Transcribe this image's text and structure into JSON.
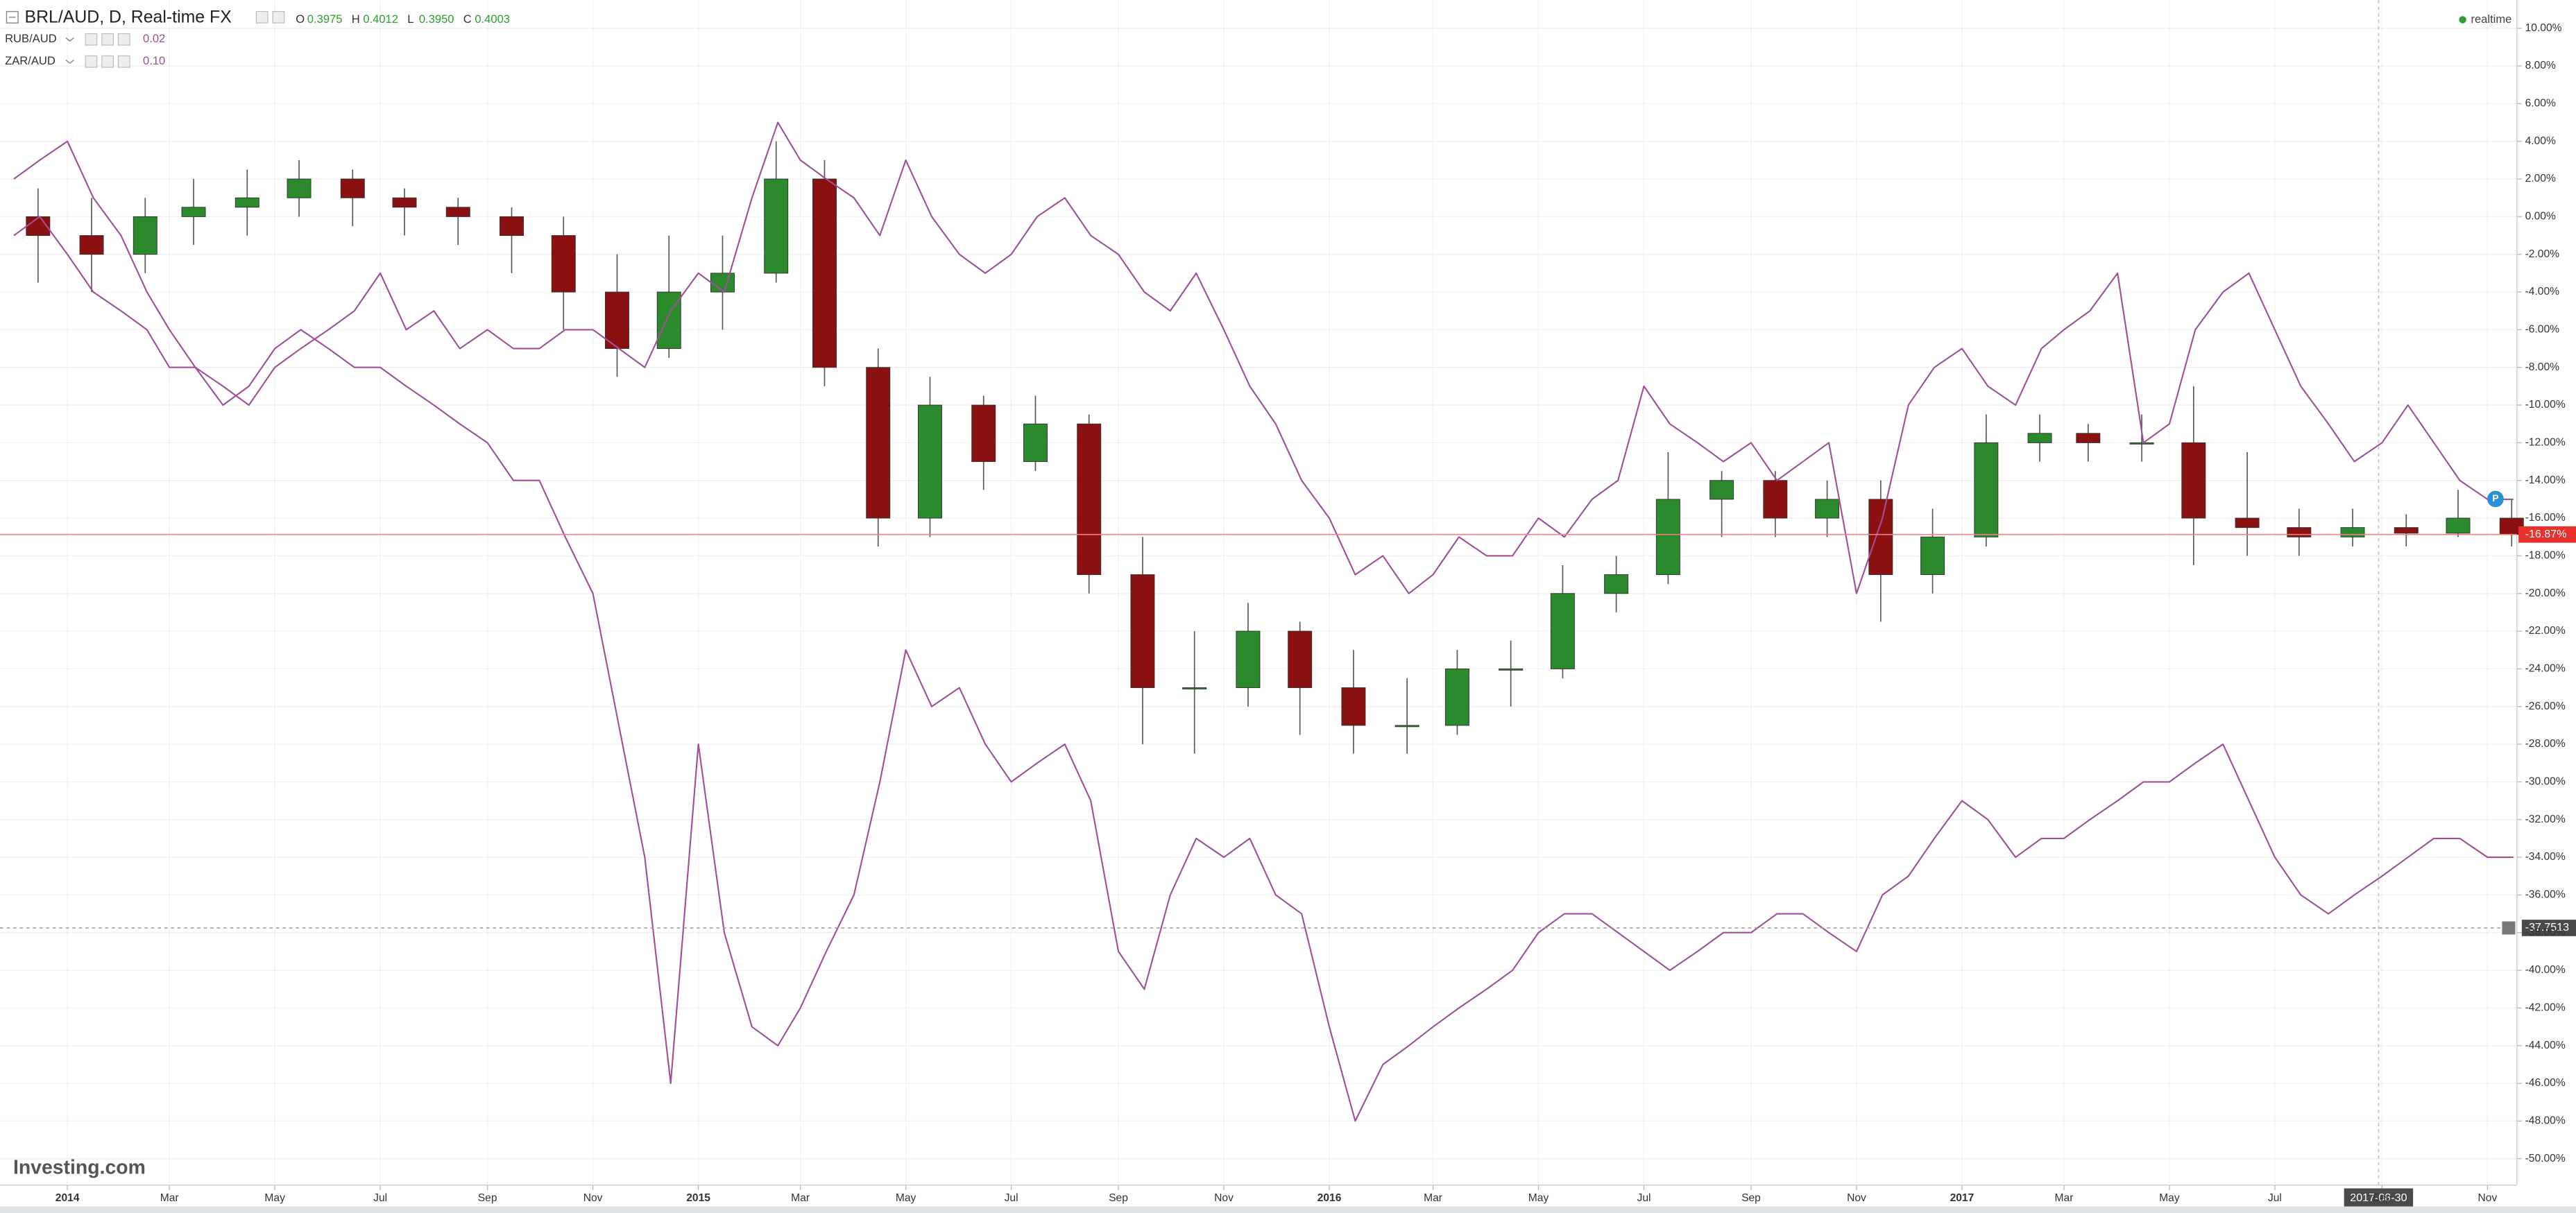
{
  "chart_data": {
    "type": "candlestick",
    "title": "BRL/AUD, D, Real-time FX",
    "ohlc": [
      {
        "label": "O",
        "value": "0.3975"
      },
      {
        "label": "H",
        "value": "0.4012"
      },
      {
        "label": "L",
        "value": "0.3950"
      },
      {
        "label": "C",
        "value": "0.4003"
      }
    ],
    "status": "realtime",
    "logo": "Investing.com",
    "grid": true,
    "ylim": [
      -51.4,
      11.5
    ],
    "yticks": [
      {
        "value": 10,
        "label": "10.00%"
      },
      {
        "value": 8,
        "label": "8.00%"
      },
      {
        "value": 6,
        "label": "6.00%"
      },
      {
        "value": 4,
        "label": "4.00%"
      },
      {
        "value": 2,
        "label": "2.00%"
      },
      {
        "value": 0,
        "label": "0.00%"
      },
      {
        "value": -2,
        "label": "-2.00%"
      },
      {
        "value": -4,
        "label": "-4.00%"
      },
      {
        "value": -6,
        "label": "-6.00%"
      },
      {
        "value": -8,
        "label": "-8.00%"
      },
      {
        "value": -10,
        "label": "-10.00%"
      },
      {
        "value": -12,
        "label": "-12.00%"
      },
      {
        "value": -14,
        "label": "-14.00%"
      },
      {
        "value": -16,
        "label": "-16.00%"
      },
      {
        "value": -18,
        "label": "-18.00%"
      },
      {
        "value": -20,
        "label": "-20.00%"
      },
      {
        "value": -22,
        "label": "-22.00%"
      },
      {
        "value": -24,
        "label": "-24.00%"
      },
      {
        "value": -26,
        "label": "-26.00%"
      },
      {
        "value": -28,
        "label": "-28.00%"
      },
      {
        "value": -30,
        "label": "-30.00%"
      },
      {
        "value": -32,
        "label": "-32.00%"
      },
      {
        "value": -34,
        "label": "-34.00%"
      },
      {
        "value": -36,
        "label": "-36.00%"
      },
      {
        "value": -38,
        "label": "-38.00%"
      },
      {
        "value": -40,
        "label": "-40.00%"
      },
      {
        "value": -42,
        "label": "-42.00%"
      },
      {
        "value": -44,
        "label": "-44.00%"
      },
      {
        "value": -46,
        "label": "-46.00%"
      },
      {
        "value": -48,
        "label": "-48.00%"
      },
      {
        "value": -50,
        "label": "-50.00%"
      }
    ],
    "xlim": [
      "2013-11-23",
      "2017-11-18"
    ],
    "xticks": [
      {
        "value": "2014-01-01",
        "label": "2014"
      },
      {
        "value": "2014-03-01",
        "label": "Mar"
      },
      {
        "value": "2014-05-01",
        "label": "May"
      },
      {
        "value": "2014-07-01",
        "label": "Jul"
      },
      {
        "value": "2014-09-01",
        "label": "Sep"
      },
      {
        "value": "2014-11-01",
        "label": "Nov"
      },
      {
        "value": "2015-01-01",
        "label": "2015"
      },
      {
        "value": "2015-03-01",
        "label": "Mar"
      },
      {
        "value": "2015-05-01",
        "label": "May"
      },
      {
        "value": "2015-07-01",
        "label": "Jul"
      },
      {
        "value": "2015-09-01",
        "label": "Sep"
      },
      {
        "value": "2015-11-01",
        "label": "Nov"
      },
      {
        "value": "2016-01-01",
        "label": "2016"
      },
      {
        "value": "2016-03-01",
        "label": "Mar"
      },
      {
        "value": "2016-05-01",
        "label": "May"
      },
      {
        "value": "2016-07-01",
        "label": "Jul"
      },
      {
        "value": "2016-09-01",
        "label": "Sep"
      },
      {
        "value": "2016-11-01",
        "label": "Nov"
      },
      {
        "value": "2017-01-01",
        "label": "2017"
      },
      {
        "value": "2017-03-01",
        "label": "Mar"
      },
      {
        "value": "2017-05-01",
        "label": "May"
      },
      {
        "value": "2017-07-01",
        "label": "Jul"
      },
      {
        "value": "2017-09-01",
        "label": "Sep"
      },
      {
        "value": "2017-11-01",
        "label": "Nov"
      }
    ],
    "last_value": {
      "value": -16.87,
      "label": "-16.87%"
    },
    "crosshair": {
      "x": "2017-08-30",
      "y": -37.7513
    },
    "series": [
      {
        "name": "BRL/AUD",
        "type": "candlestick",
        "up_color": "#2b8a2b",
        "down_color": "#8b1010",
        "x": [
          "2013-12-15",
          "2014-01-15",
          "2014-02-15",
          "2014-03-15",
          "2014-04-15",
          "2014-05-15",
          "2014-06-15",
          "2014-07-15",
          "2014-08-15",
          "2014-09-15",
          "2014-10-15",
          "2014-11-15",
          "2014-12-15",
          "2015-01-15",
          "2015-02-15",
          "2015-03-15",
          "2015-04-15",
          "2015-05-15",
          "2015-06-15",
          "2015-07-15",
          "2015-08-15",
          "2015-09-15",
          "2015-10-15",
          "2015-11-15",
          "2015-12-15",
          "2016-01-15",
          "2016-02-15",
          "2016-03-15",
          "2016-04-15",
          "2016-05-15",
          "2016-06-15",
          "2016-07-15",
          "2016-08-15",
          "2016-09-15",
          "2016-10-15",
          "2016-11-15",
          "2016-12-15",
          "2017-01-15",
          "2017-02-15",
          "2017-03-15",
          "2017-04-15",
          "2017-05-15",
          "2017-06-15",
          "2017-07-15",
          "2017-08-15",
          "2017-09-15",
          "2017-10-15",
          "2017-11-15"
        ],
        "open": [
          0,
          -1,
          -2,
          0,
          0.5,
          1,
          2,
          1,
          0.5,
          0,
          -1,
          -4,
          -7,
          -4,
          -3,
          2,
          -8,
          -16,
          -10,
          -13,
          -11,
          -19,
          -25,
          -25,
          -22,
          -25,
          -27,
          -27,
          -24,
          -24,
          -20,
          -19,
          -15,
          -14,
          -16,
          -15,
          -19,
          -17,
          -12,
          -11.5,
          -12,
          -12,
          -16,
          -16.5,
          -17,
          -16.5,
          -16.8,
          -16
        ],
        "high": [
          1.5,
          1,
          1,
          2,
          2.5,
          3,
          2.5,
          1.5,
          1,
          0.5,
          0,
          -2,
          -1,
          -1,
          4,
          3,
          -7,
          -8.5,
          -9.5,
          -9.5,
          -10.5,
          -17,
          -22,
          -20.5,
          -21.5,
          -23,
          -24.5,
          -23,
          -22.5,
          -18.5,
          -18,
          -12.5,
          -13.5,
          -13.5,
          -14,
          -14,
          -15.5,
          -10.5,
          -10.5,
          -11,
          -10.5,
          -9,
          -12.5,
          -15.5,
          -15.5,
          -15.8,
          -14.5,
          -15
        ],
        "low": [
          -3.5,
          -4,
          -3,
          -1.5,
          -1,
          0,
          -0.5,
          -1,
          -1.5,
          -3,
          -6,
          -8.5,
          -7.5,
          -6,
          -3.5,
          -9,
          -17.5,
          -17,
          -14.5,
          -13.5,
          -20,
          -28,
          -28.5,
          -26,
          -27.5,
          -28.5,
          -28.5,
          -27.5,
          -26,
          -24.5,
          -21,
          -19.5,
          -17,
          -17,
          -17,
          -21.5,
          -20,
          -17.5,
          -13,
          -13,
          -13,
          -18.5,
          -18,
          -18,
          -17.5,
          -17.5,
          -17,
          -17.5
        ],
        "close": [
          -1,
          -2,
          0,
          0.5,
          1,
          2,
          1,
          0.5,
          0,
          -1,
          -4,
          -7,
          -4,
          -3,
          2,
          -8,
          -16,
          -10,
          -13,
          -11,
          -19,
          -25,
          -25,
          -22,
          -25,
          -27,
          -27,
          -24,
          -24,
          -20,
          -19,
          -15,
          -14,
          -16,
          -15,
          -19,
          -17,
          -12,
          -11.5,
          -12,
          -12,
          -16,
          -16.5,
          -17,
          -16.5,
          -16.8,
          -16,
          -16.87
        ]
      },
      {
        "name": "RUB/AUD",
        "type": "line",
        "color": "#a14f97",
        "legend_value": "0.02",
        "x": [
          "2013-12-01",
          "2013-12-16",
          "2014-01-01",
          "2014-01-16",
          "2014-02-01",
          "2014-02-16",
          "2014-03-01",
          "2014-03-16",
          "2014-04-01",
          "2014-04-16",
          "2014-05-01",
          "2014-05-16",
          "2014-06-01",
          "2014-06-16",
          "2014-07-01",
          "2014-07-16",
          "2014-08-01",
          "2014-08-16",
          "2014-09-01",
          "2014-09-16",
          "2014-10-01",
          "2014-10-16",
          "2014-11-01",
          "2014-11-16",
          "2014-12-01",
          "2014-12-16",
          "2015-01-01",
          "2015-01-16",
          "2015-02-01",
          "2015-02-16",
          "2015-03-01",
          "2015-03-16",
          "2015-04-01",
          "2015-04-16",
          "2015-05-01",
          "2015-05-16",
          "2015-06-01",
          "2015-06-16",
          "2015-07-01",
          "2015-07-16",
          "2015-08-01",
          "2015-08-16",
          "2015-09-01",
          "2015-09-16",
          "2015-10-01",
          "2015-10-16",
          "2015-11-01",
          "2015-11-16",
          "2015-12-01",
          "2015-12-16",
          "2016-01-01",
          "2016-01-16",
          "2016-02-01",
          "2016-02-16",
          "2016-03-01",
          "2016-03-16",
          "2016-04-01",
          "2016-04-16",
          "2016-05-01",
          "2016-05-16",
          "2016-06-01",
          "2016-06-16",
          "2016-07-01",
          "2016-07-16",
          "2016-08-01",
          "2016-08-16",
          "2016-09-01",
          "2016-09-16",
          "2016-10-01",
          "2016-10-16",
          "2016-11-01",
          "2016-11-16",
          "2016-12-01",
          "2016-12-16",
          "2017-01-01",
          "2017-01-16",
          "2017-02-01",
          "2017-02-16",
          "2017-03-01",
          "2017-03-16",
          "2017-04-01",
          "2017-04-16",
          "2017-05-01",
          "2017-05-16",
          "2017-06-01",
          "2017-06-16",
          "2017-07-01",
          "2017-07-16",
          "2017-08-01",
          "2017-08-16",
          "2017-09-01",
          "2017-09-16",
          "2017-10-01",
          "2017-10-16",
          "2017-11-01",
          "2017-11-16"
        ],
        "values": [
          -1,
          0,
          -2,
          -4,
          -5,
          -6,
          -8,
          -8,
          -10,
          -9,
          -7,
          -6,
          -7,
          -8,
          -8,
          -9,
          -10,
          -11,
          -12,
          -14,
          -14,
          -17,
          -20,
          -27,
          -34,
          -46,
          -28,
          -38,
          -43,
          -44,
          -42,
          -39,
          -36,
          -30,
          -23,
          -26,
          -25,
          -28,
          -30,
          -29,
          -28,
          -31,
          -39,
          -41,
          -36,
          -33,
          -34,
          -33,
          -36,
          -37,
          -43,
          -48,
          -45,
          -44,
          -43,
          -42,
          -41,
          -40,
          -38,
          -37,
          -37,
          -38,
          -39,
          -40,
          -39,
          -38,
          -38,
          -37,
          -37,
          -38,
          -39,
          -36,
          -35,
          -33,
          -31,
          -32,
          -34,
          -33,
          -33,
          -32,
          -31,
          -30,
          -30,
          -29,
          -28,
          -31,
          -34,
          -36,
          -37,
          -36,
          -35,
          -34,
          -33,
          -33,
          -34,
          -34
        ]
      },
      {
        "name": "ZAR/AUD",
        "type": "line",
        "color": "#a14f97",
        "legend_value": "0.10",
        "x": [
          "2013-12-01",
          "2013-12-16",
          "2014-01-01",
          "2014-01-16",
          "2014-02-01",
          "2014-02-16",
          "2014-03-01",
          "2014-03-16",
          "2014-04-01",
          "2014-04-16",
          "2014-05-01",
          "2014-05-16",
          "2014-06-01",
          "2014-06-16",
          "2014-07-01",
          "2014-07-16",
          "2014-08-01",
          "2014-08-16",
          "2014-09-01",
          "2014-09-16",
          "2014-10-01",
          "2014-10-16",
          "2014-11-01",
          "2014-11-16",
          "2014-12-01",
          "2014-12-16",
          "2015-01-01",
          "2015-01-16",
          "2015-02-01",
          "2015-02-16",
          "2015-03-01",
          "2015-03-16",
          "2015-04-01",
          "2015-04-16",
          "2015-05-01",
          "2015-05-16",
          "2015-06-01",
          "2015-06-16",
          "2015-07-01",
          "2015-07-16",
          "2015-08-01",
          "2015-08-16",
          "2015-09-01",
          "2015-09-16",
          "2015-10-01",
          "2015-10-16",
          "2015-11-01",
          "2015-11-16",
          "2015-12-01",
          "2015-12-16",
          "2016-01-01",
          "2016-01-16",
          "2016-02-01",
          "2016-02-16",
          "2016-03-01",
          "2016-03-16",
          "2016-04-01",
          "2016-04-16",
          "2016-05-01",
          "2016-05-16",
          "2016-06-01",
          "2016-06-16",
          "2016-07-01",
          "2016-07-16",
          "2016-08-01",
          "2016-08-16",
          "2016-09-01",
          "2016-09-16",
          "2016-10-01",
          "2016-10-16",
          "2016-11-01",
          "2016-11-16",
          "2016-12-01",
          "2016-12-16",
          "2017-01-01",
          "2017-01-16",
          "2017-02-01",
          "2017-02-16",
          "2017-03-01",
          "2017-03-16",
          "2017-04-01",
          "2017-04-16",
          "2017-05-01",
          "2017-05-16",
          "2017-06-01",
          "2017-06-16",
          "2017-07-01",
          "2017-07-16",
          "2017-08-01",
          "2017-08-16",
          "2017-09-01",
          "2017-09-16",
          "2017-10-01",
          "2017-10-16",
          "2017-11-01",
          "2017-11-16"
        ],
        "values": [
          2,
          3,
          4,
          1,
          -1,
          -4,
          -6,
          -8,
          -9,
          -10,
          -8,
          -7,
          -6,
          -5,
          -3,
          -6,
          -5,
          -7,
          -6,
          -7,
          -7,
          -6,
          -6,
          -7,
          -8,
          -5,
          -3,
          -4,
          1,
          5,
          3,
          2,
          1,
          -1,
          3,
          0,
          -2,
          -3,
          -2,
          0,
          1,
          -1,
          -2,
          -4,
          -5,
          -3,
          -6,
          -9,
          -11,
          -14,
          -16,
          -19,
          -18,
          -20,
          -19,
          -17,
          -18,
          -18,
          -16,
          -17,
          -15,
          -14,
          -9,
          -11,
          -12,
          -13,
          -12,
          -14,
          -13,
          -12,
          -20,
          -16,
          -10,
          -8,
          -7,
          -9,
          -10,
          -7,
          -6,
          -5,
          -3,
          -12,
          -11,
          -6,
          -4,
          -3,
          -6,
          -9,
          -11,
          -13,
          -12,
          -10,
          -12,
          -14,
          -15,
          -15
        ]
      }
    ]
  }
}
